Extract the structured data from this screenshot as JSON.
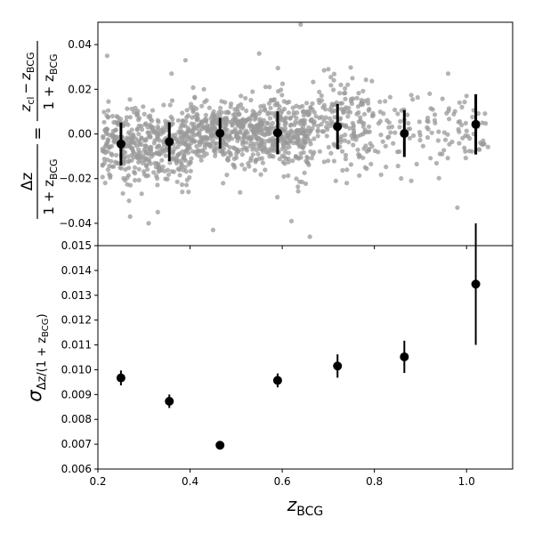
{
  "chart_data": [
    {
      "type": "scatter",
      "panel": "top",
      "xlim": [
        0.2,
        1.1
      ],
      "ylim": [
        -0.05,
        0.05
      ],
      "xticks": [
        0.2,
        0.4,
        0.6,
        0.8,
        1.0
      ],
      "yticks": [
        -0.04,
        -0.02,
        0.0,
        0.02,
        0.04
      ],
      "ytick_labels": [
        "−0.04",
        "−0.02",
        "0.00",
        "0.02",
        "0.04"
      ],
      "ylabel": {
        "lhs_num": "Δz",
        "lhs_den": "1 + z",
        "lhs_den_sub": "BCG",
        "equals": "=",
        "rhs_num_z1": "z",
        "rhs_num_sub1": "cl",
        "rhs_num_minus": "−",
        "rhs_num_z2": "z",
        "rhs_num_sub2": "BCG",
        "rhs_den": "1 + z",
        "rhs_den_sub": "BCG"
      },
      "scatter_color": "#999999",
      "binned_color": "#000000",
      "binned": {
        "x": [
          0.25,
          0.355,
          0.465,
          0.59,
          0.72,
          0.865,
          1.02
        ],
        "y": [
          -0.0045,
          -0.0035,
          0.0003,
          0.0005,
          0.0033,
          0.0002,
          0.0043
        ],
        "yerr": [
          0.0096,
          0.0087,
          0.0069,
          0.0096,
          0.0101,
          0.0105,
          0.0135
        ]
      },
      "outliers": {
        "x": [
          0.22,
          0.27,
          0.31,
          0.39,
          0.43,
          0.55,
          0.64,
          0.66,
          0.7,
          0.74,
          0.78,
          0.85,
          0.88,
          0.92,
          0.96,
          0.98,
          0.99,
          1.0,
          1.03,
          0.36,
          0.45,
          0.62,
          0.33,
          0.52
        ],
        "y": [
          0.035,
          -0.037,
          -0.04,
          0.033,
          0.02,
          0.036,
          0.049,
          -0.046,
          0.029,
          -0.022,
          -0.015,
          -0.008,
          -0.021,
          0.018,
          0.027,
          -0.033,
          0.012,
          0.017,
          -0.004,
          0.027,
          -0.043,
          -0.039,
          -0.035,
          0.016
        ]
      }
    },
    {
      "type": "scatter",
      "panel": "bottom",
      "xlim": [
        0.2,
        1.1
      ],
      "ylim": [
        0.006,
        0.015
      ],
      "xticks": [
        0.2,
        0.4,
        0.6,
        0.8,
        1.0
      ],
      "xtick_labels": [
        "0.2",
        "0.4",
        "0.6",
        "0.8",
        "1.0"
      ],
      "yticks": [
        0.006,
        0.007,
        0.008,
        0.009,
        0.01,
        0.011,
        0.012,
        0.013,
        0.014,
        0.015
      ],
      "ytick_labels": [
        "0.006",
        "0.007",
        "0.008",
        "0.009",
        "0.010",
        "0.011",
        "0.012",
        "0.013",
        "0.014",
        "0.015"
      ],
      "xlabel": {
        "z": "z",
        "sub": "BCG"
      },
      "ylabel": {
        "sigma": "σ",
        "sub": "Δz/(1 + z",
        "subsub": "BCG",
        "close": ")"
      },
      "x": [
        0.25,
        0.355,
        0.465,
        0.59,
        0.72,
        0.865,
        1.02
      ],
      "y": [
        0.00967,
        0.00873,
        0.00696,
        0.00957,
        0.01015,
        0.01052,
        0.01345
      ],
      "yerr": [
        0.0003,
        0.00027,
        0.0,
        0.00028,
        0.00047,
        0.00065,
        0.00245
      ],
      "color": "#000000"
    }
  ]
}
